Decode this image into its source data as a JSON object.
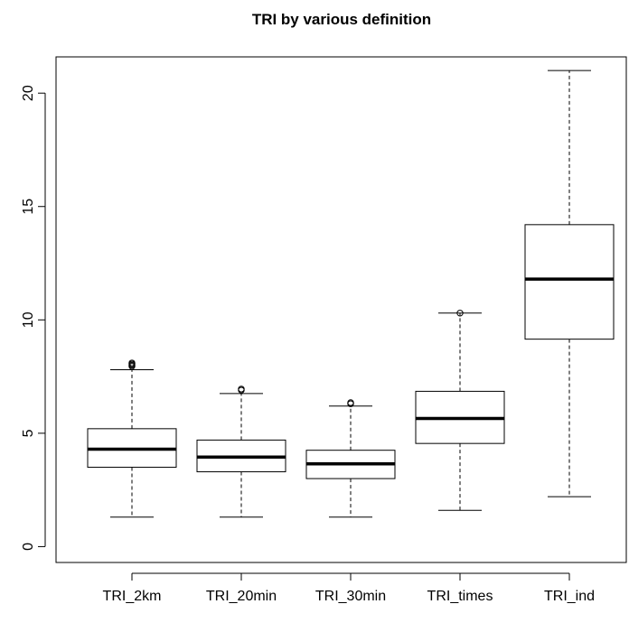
{
  "chart_data": {
    "type": "boxplot",
    "title": "TRI by various definition",
    "xlabel": "",
    "ylabel": "",
    "ylim": [
      -0.7,
      21.6
    ],
    "y_ticks": [
      0,
      5,
      10,
      15,
      20
    ],
    "y_tick_labels": [
      "0",
      "5",
      "10",
      "15",
      "20"
    ],
    "grid": false,
    "legend": "none",
    "colors": {
      "box_stroke": "#000000",
      "median": "#000000",
      "background": "#ffffff"
    },
    "categories": [
      "TRI_2km",
      "TRI_20min",
      "TRI_30min",
      "TRI_times",
      "TRI_ind"
    ],
    "boxes": [
      {
        "name": "TRI_2km",
        "whisker_low": 1.3,
        "q1": 3.5,
        "median": 4.3,
        "q3": 5.2,
        "whisker_high": 7.8,
        "outliers": [
          7.95,
          8.0,
          8.05,
          8.1
        ]
      },
      {
        "name": "TRI_20min",
        "whisker_low": 1.3,
        "q1": 3.3,
        "median": 3.95,
        "q3": 4.7,
        "whisker_high": 6.75,
        "outliers": [
          6.9,
          6.95
        ]
      },
      {
        "name": "TRI_30min",
        "whisker_low": 1.3,
        "q1": 3.0,
        "median": 3.65,
        "q3": 4.25,
        "whisker_high": 6.2,
        "outliers": [
          6.3,
          6.35
        ]
      },
      {
        "name": "TRI_times",
        "whisker_low": 1.6,
        "q1": 4.55,
        "median": 5.65,
        "q3": 6.85,
        "whisker_high": 10.3,
        "outliers": [
          10.3
        ]
      },
      {
        "name": "TRI_ind",
        "whisker_low": 2.2,
        "q1": 9.15,
        "median": 11.8,
        "q3": 14.2,
        "whisker_high": 21.0,
        "outliers": []
      }
    ]
  }
}
